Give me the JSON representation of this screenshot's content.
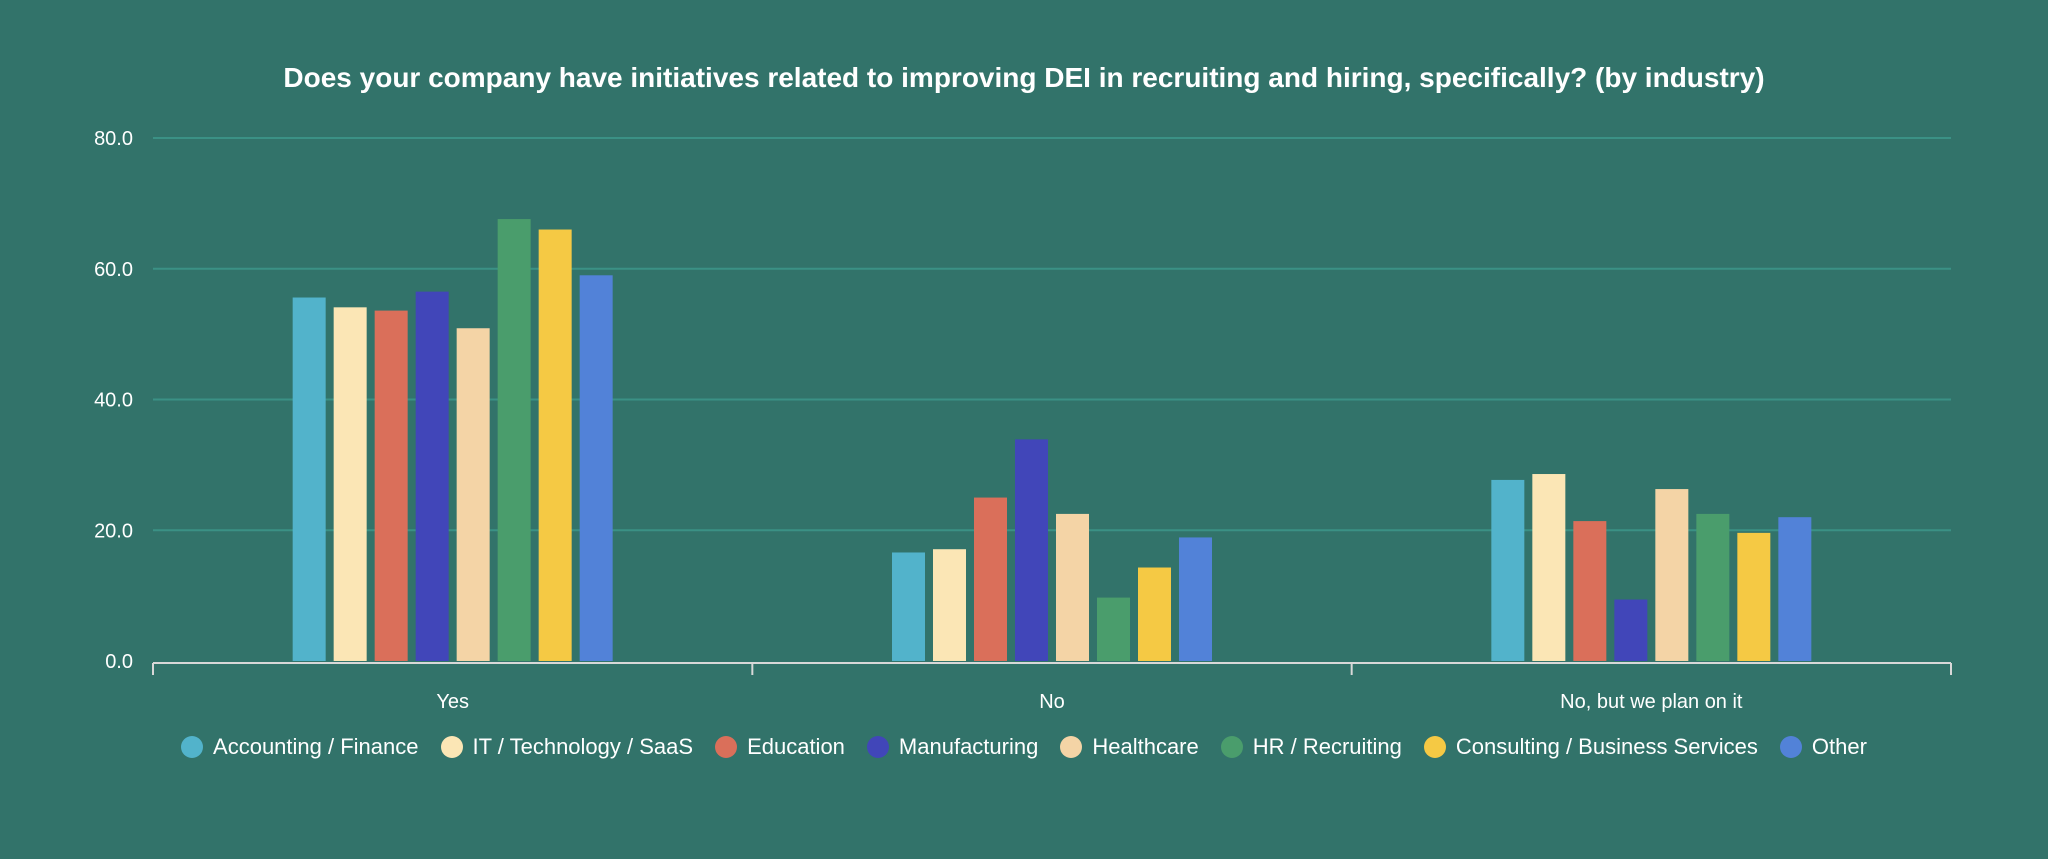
{
  "chart_data": {
    "type": "bar",
    "title": "Does your company have initiatives related to improving DEI in recruiting and hiring, specifically? (by industry)",
    "xlabel": "",
    "ylabel": "",
    "ylim": [
      0,
      80
    ],
    "yticks": [
      "0.0",
      "20.0",
      "40.0",
      "60.0",
      "80.0"
    ],
    "grid": true,
    "legend_position": "bottom",
    "categories": [
      "Yes",
      "No",
      "No, but we plan on it"
    ],
    "series": [
      {
        "name": "Accounting / Finance",
        "color": "#52b3cb",
        "values": [
          55.6,
          16.6,
          27.7
        ]
      },
      {
        "name": "IT / Technology / SaaS",
        "color": "#fbe6b5",
        "values": [
          54.1,
          17.1,
          28.6
        ]
      },
      {
        "name": "Education",
        "color": "#da6f5a",
        "values": [
          53.6,
          25.0,
          21.4
        ]
      },
      {
        "name": "Manufacturing",
        "color": "#4146b9",
        "values": [
          56.5,
          33.9,
          9.4
        ]
      },
      {
        "name": "Healthcare",
        "color": "#f4d4a6",
        "values": [
          50.9,
          22.5,
          26.3
        ]
      },
      {
        "name": "HR / Recruiting",
        "color": "#4a9d6c",
        "values": [
          67.6,
          9.7,
          22.5
        ]
      },
      {
        "name": "Consulting / Business Services",
        "color": "#f5c944",
        "values": [
          66.0,
          14.3,
          19.6
        ]
      },
      {
        "name": "Other",
        "color": "#5282d8",
        "values": [
          59.0,
          18.9,
          22.0
        ]
      }
    ]
  }
}
